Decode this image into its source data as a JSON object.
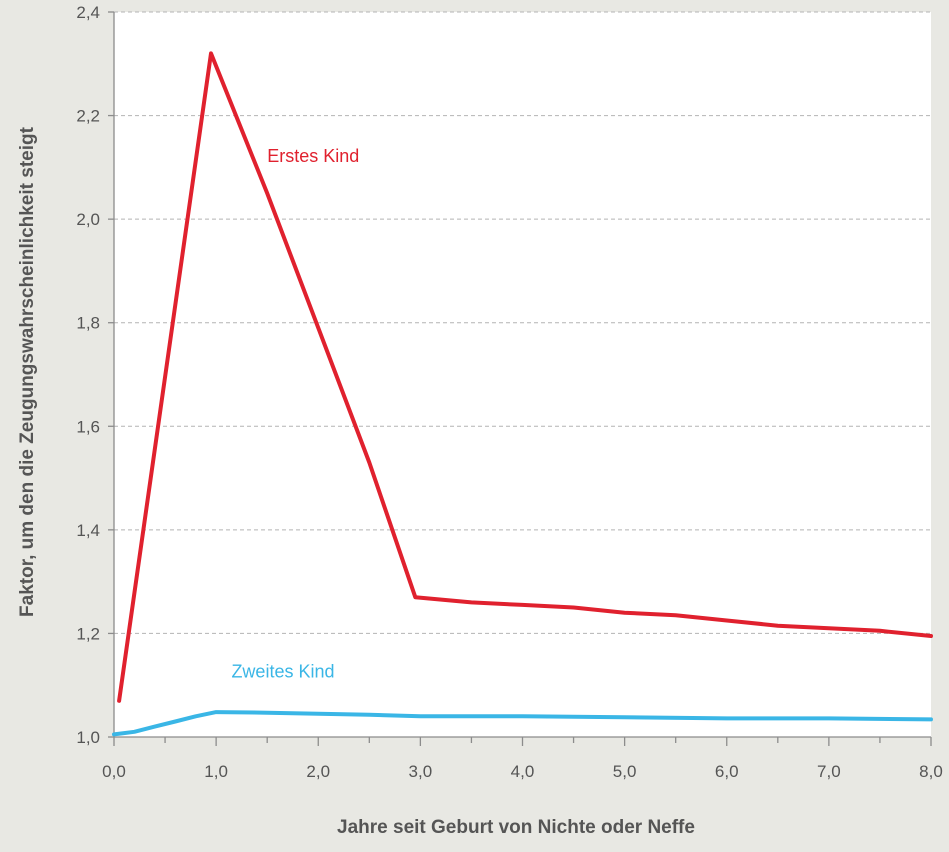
{
  "chart_data": {
    "type": "line",
    "title": "",
    "xlabel": "Jahre seit Geburt von Nichte oder Neffe",
    "ylabel": "Faktor, um den die Zeugungswahrscheinlichkeit steigt",
    "xlim": [
      0,
      8
    ],
    "ylim": [
      1.0,
      2.4
    ],
    "x_ticks": [
      "0,0",
      "1,0",
      "2,0",
      "3,0",
      "4,0",
      "5,0",
      "6,0",
      "7,0",
      "8,0"
    ],
    "y_ticks": [
      "1,0",
      "1,2",
      "1,4",
      "1,6",
      "1,8",
      "2,0",
      "2,2",
      "2,4"
    ],
    "grid": "horizontal dashed",
    "colors": {
      "background": "#e8e8e3",
      "plot_background": "#ffffff",
      "first_child": "#e0212e",
      "second_child": "#3ab6e6"
    },
    "series": [
      {
        "name": "Erstes Kind",
        "x": [
          0.05,
          0.95,
          1.5,
          2.0,
          2.5,
          2.95,
          3.5,
          4.0,
          4.5,
          5.0,
          5.5,
          6.0,
          6.5,
          7.0,
          7.5,
          8.0
        ],
        "y": [
          1.07,
          2.32,
          2.05,
          1.79,
          1.53,
          1.27,
          1.26,
          1.255,
          1.25,
          1.24,
          1.235,
          1.225,
          1.215,
          1.21,
          1.205,
          1.195
        ]
      },
      {
        "name": "Zweites Kind",
        "x": [
          0.0,
          0.2,
          0.4,
          0.6,
          0.8,
          1.0,
          1.5,
          2.0,
          2.5,
          3.0,
          4.0,
          5.0,
          6.0,
          7.0,
          8.0
        ],
        "y": [
          1.005,
          1.01,
          1.02,
          1.03,
          1.04,
          1.048,
          1.047,
          1.045,
          1.043,
          1.04,
          1.04,
          1.038,
          1.036,
          1.036,
          1.034
        ]
      }
    ],
    "series_labels": [
      {
        "text": "Erstes Kind",
        "x": 1.5,
        "y": 2.11
      },
      {
        "text": "Zweites Kind",
        "x": 1.15,
        "y": 1.115
      }
    ]
  }
}
